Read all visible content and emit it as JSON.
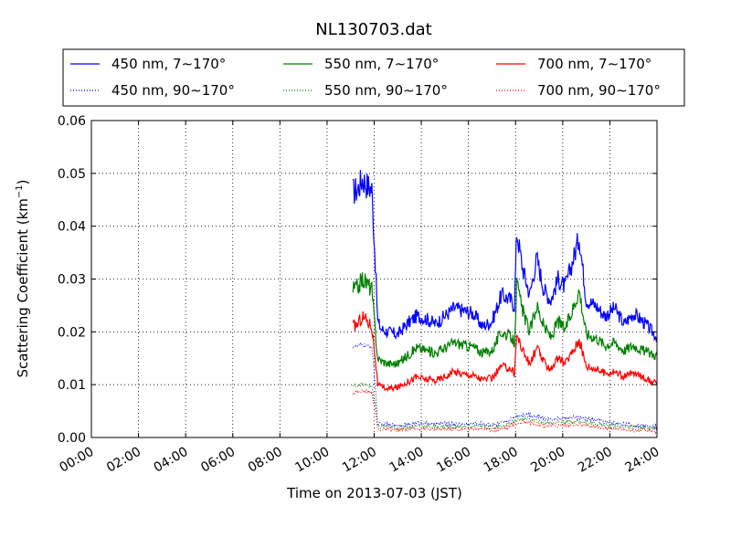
{
  "chart_data": {
    "type": "line",
    "title": "NL130703.dat",
    "xlabel": "Time on 2013-07-03 (JST)",
    "ylabel_main": "Scattering Coefficient (km",
    "ylabel_sup": "−1",
    "ylabel_close": ")",
    "x_unit": "hours",
    "xlim": [
      0,
      24
    ],
    "ylim": [
      0,
      0.06
    ],
    "grid": true,
    "legend_position": "top",
    "x_ticks": [
      {
        "value": 0,
        "label": "00:00"
      },
      {
        "value": 2,
        "label": "02:00"
      },
      {
        "value": 4,
        "label": "04:00"
      },
      {
        "value": 6,
        "label": "06:00"
      },
      {
        "value": 8,
        "label": "08:00"
      },
      {
        "value": 10,
        "label": "10:00"
      },
      {
        "value": 12,
        "label": "12:00"
      },
      {
        "value": 14,
        "label": "14:00"
      },
      {
        "value": 16,
        "label": "16:00"
      },
      {
        "value": 18,
        "label": "18:00"
      },
      {
        "value": 20,
        "label": "20:00"
      },
      {
        "value": 22,
        "label": "22:00"
      },
      {
        "value": 24,
        "label": "24:00"
      }
    ],
    "y_ticks": [
      {
        "value": 0,
        "label": "0.00"
      },
      {
        "value": 0.01,
        "label": "0.01"
      },
      {
        "value": 0.02,
        "label": "0.02"
      },
      {
        "value": 0.03,
        "label": "0.03"
      },
      {
        "value": 0.04,
        "label": "0.04"
      },
      {
        "value": 0.05,
        "label": "0.05"
      },
      {
        "value": 0.06,
        "label": "0.06"
      }
    ],
    "series": [
      {
        "name": "450 nm, 7∼170°",
        "color": "#0000ff",
        "style": "solid",
        "x": [
          11.1,
          11.3,
          11.5,
          11.7,
          11.9,
          12.05,
          12.15,
          12.3,
          12.6,
          13.0,
          13.4,
          13.8,
          14.2,
          14.6,
          15.0,
          15.4,
          15.8,
          16.2,
          16.6,
          17.0,
          17.4,
          17.8,
          17.95,
          18.05,
          18.3,
          18.6,
          18.9,
          19.2,
          19.5,
          19.8,
          20.1,
          20.4,
          20.7,
          21.0,
          21.4,
          21.8,
          22.2,
          22.6,
          23.0,
          23.4,
          23.8,
          24.0
        ],
        "y": [
          0.0465,
          0.047,
          0.049,
          0.0478,
          0.047,
          0.033,
          0.022,
          0.0205,
          0.02,
          0.0195,
          0.0215,
          0.023,
          0.0225,
          0.0215,
          0.023,
          0.0245,
          0.024,
          0.0235,
          0.021,
          0.022,
          0.027,
          0.026,
          0.025,
          0.039,
          0.032,
          0.027,
          0.034,
          0.028,
          0.026,
          0.03,
          0.0285,
          0.033,
          0.038,
          0.026,
          0.025,
          0.023,
          0.0245,
          0.0215,
          0.0235,
          0.022,
          0.02,
          0.019
        ]
      },
      {
        "name": "450 nm, 90∼170°",
        "color": "#0000ff",
        "style": "dotted",
        "x": [
          11.1,
          11.5,
          11.9,
          12.05,
          12.15,
          12.5,
          13.0,
          13.5,
          14.0,
          14.5,
          15.0,
          15.5,
          16.0,
          16.5,
          17.0,
          17.5,
          18.0,
          18.5,
          19.0,
          19.5,
          20.0,
          20.5,
          21.0,
          21.5,
          22.0,
          22.5,
          23.0,
          23.5,
          24.0
        ],
        "y": [
          0.0172,
          0.0175,
          0.0172,
          0.01,
          0.0025,
          0.0025,
          0.0023,
          0.0025,
          0.0028,
          0.0025,
          0.0027,
          0.0025,
          0.0025,
          0.0027,
          0.0023,
          0.0028,
          0.004,
          0.0045,
          0.0038,
          0.0035,
          0.0036,
          0.0038,
          0.0035,
          0.0032,
          0.0028,
          0.0026,
          0.0023,
          0.0022,
          0.0021
        ]
      },
      {
        "name": "550 nm, 7∼170°",
        "color": "#008000",
        "style": "solid",
        "x": [
          11.1,
          11.3,
          11.5,
          11.7,
          11.9,
          12.05,
          12.15,
          12.3,
          12.6,
          13.0,
          13.4,
          13.8,
          14.2,
          14.6,
          15.0,
          15.4,
          15.8,
          16.2,
          16.6,
          17.0,
          17.4,
          17.8,
          17.95,
          18.05,
          18.3,
          18.6,
          18.9,
          19.2,
          19.5,
          19.8,
          20.1,
          20.4,
          20.7,
          21.0,
          21.4,
          21.8,
          22.2,
          22.6,
          23.0,
          23.4,
          23.8,
          24.0
        ],
        "y": [
          0.028,
          0.0285,
          0.03,
          0.0292,
          0.028,
          0.02,
          0.015,
          0.0145,
          0.014,
          0.014,
          0.0155,
          0.017,
          0.0165,
          0.016,
          0.017,
          0.018,
          0.0175,
          0.0172,
          0.016,
          0.0165,
          0.02,
          0.019,
          0.018,
          0.029,
          0.024,
          0.02,
          0.025,
          0.021,
          0.019,
          0.022,
          0.0205,
          0.024,
          0.028,
          0.0195,
          0.019,
          0.0175,
          0.018,
          0.0165,
          0.0175,
          0.0165,
          0.0158,
          0.0155
        ]
      },
      {
        "name": "550 nm, 90∼170°",
        "color": "#008000",
        "style": "dotted",
        "x": [
          11.1,
          11.5,
          11.9,
          12.05,
          12.15,
          12.5,
          13.0,
          13.5,
          14.0,
          14.5,
          15.0,
          15.5,
          16.0,
          16.5,
          17.0,
          17.5,
          18.0,
          18.5,
          19.0,
          19.5,
          20.0,
          20.5,
          21.0,
          21.5,
          22.0,
          22.5,
          23.0,
          23.5,
          24.0
        ],
        "y": [
          0.0098,
          0.01,
          0.0098,
          0.006,
          0.002,
          0.002,
          0.0018,
          0.002,
          0.0022,
          0.002,
          0.0021,
          0.002,
          0.002,
          0.0022,
          0.0019,
          0.0022,
          0.0032,
          0.0036,
          0.003,
          0.0028,
          0.0029,
          0.0031,
          0.0028,
          0.0026,
          0.0022,
          0.0021,
          0.0019,
          0.0018,
          0.0017
        ]
      },
      {
        "name": "700 nm, 7∼170°",
        "color": "#ff0000",
        "style": "solid",
        "x": [
          11.1,
          11.3,
          11.5,
          11.7,
          11.9,
          12.05,
          12.15,
          12.3,
          12.6,
          13.0,
          13.4,
          13.8,
          14.2,
          14.6,
          15.0,
          15.4,
          15.8,
          16.2,
          16.6,
          17.0,
          17.4,
          17.8,
          17.95,
          18.05,
          18.3,
          18.6,
          18.9,
          19.2,
          19.5,
          19.8,
          20.1,
          20.4,
          20.7,
          21.0,
          21.4,
          21.8,
          22.2,
          22.6,
          23.0,
          23.4,
          23.8,
          24.0
        ],
        "y": [
          0.021,
          0.0215,
          0.023,
          0.0222,
          0.021,
          0.015,
          0.01,
          0.0095,
          0.0092,
          0.0095,
          0.0105,
          0.0115,
          0.011,
          0.0108,
          0.0115,
          0.0125,
          0.012,
          0.0118,
          0.011,
          0.0112,
          0.0135,
          0.013,
          0.0122,
          0.0195,
          0.0165,
          0.0138,
          0.017,
          0.0142,
          0.013,
          0.015,
          0.014,
          0.0162,
          0.0185,
          0.0135,
          0.013,
          0.0122,
          0.0125,
          0.0115,
          0.0122,
          0.0115,
          0.0105,
          0.0102
        ]
      },
      {
        "name": "700 nm, 90∼170°",
        "color": "#ff0000",
        "style": "dotted",
        "x": [
          11.1,
          11.5,
          11.9,
          12.05,
          12.15,
          12.5,
          13.0,
          13.5,
          14.0,
          14.5,
          15.0,
          15.5,
          16.0,
          16.5,
          17.0,
          17.5,
          18.0,
          18.5,
          19.0,
          19.5,
          20.0,
          20.5,
          21.0,
          21.5,
          22.0,
          22.5,
          23.0,
          23.5,
          24.0
        ],
        "y": [
          0.0085,
          0.0088,
          0.0086,
          0.005,
          0.0015,
          0.0015,
          0.0014,
          0.0015,
          0.0017,
          0.0015,
          0.0016,
          0.0015,
          0.0015,
          0.0017,
          0.0014,
          0.0017,
          0.0026,
          0.003,
          0.0024,
          0.0022,
          0.0023,
          0.0025,
          0.0022,
          0.002,
          0.0017,
          0.0016,
          0.0014,
          0.0013,
          0.0012
        ]
      }
    ]
  }
}
